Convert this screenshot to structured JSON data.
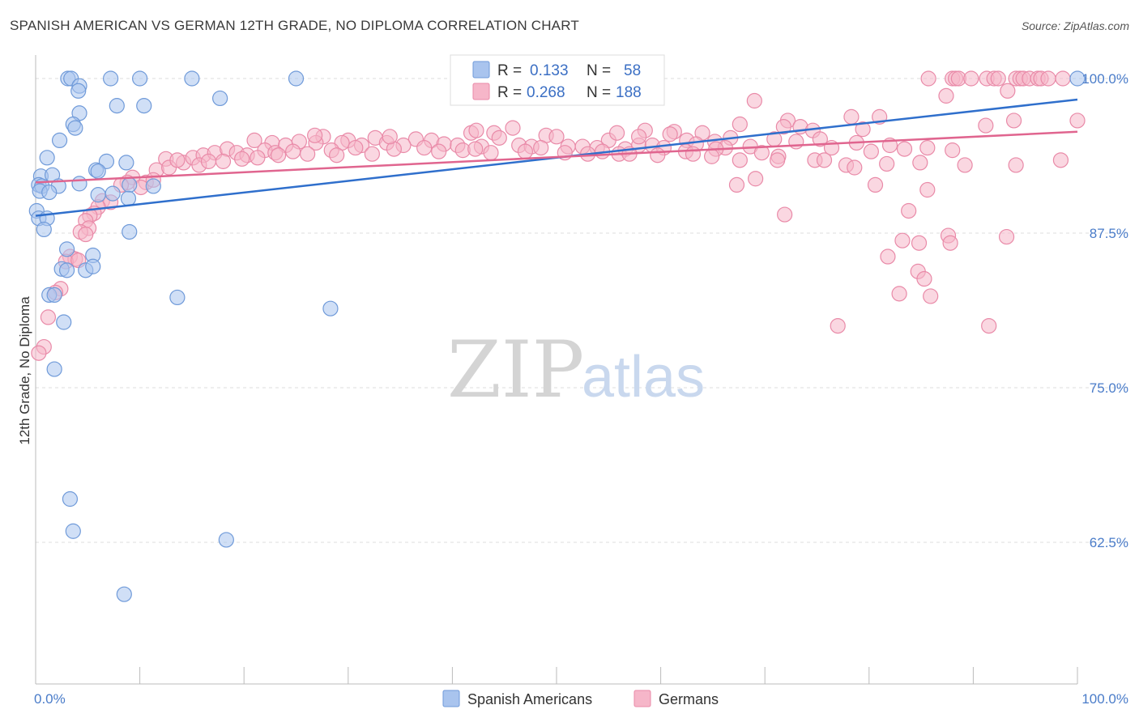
{
  "title": "SPANISH AMERICAN VS GERMAN 12TH GRADE, NO DIPLOMA CORRELATION CHART",
  "source": "Source: ZipAtlas.com",
  "watermark": {
    "zip": "ZIP",
    "atlas": "atlas"
  },
  "colors": {
    "blue_fill": "#a9c4ee",
    "blue_stroke": "#6f9ad9",
    "blue_line": "#2f6fcc",
    "pink_fill": "#f6b6c9",
    "pink_stroke": "#e98aa8",
    "pink_line": "#e0658f",
    "grid": "#dddddd",
    "tick_text": "#4a7cc9"
  },
  "legend": {
    "row1": {
      "r_label": "R =",
      "r_value": "0.133",
      "n_label": "N =",
      "n_value": "58"
    },
    "row2": {
      "r_label": "R =",
      "r_value": "0.268",
      "n_label": "N =",
      "n_value": "188"
    }
  },
  "bottom_legend": {
    "item1": "Spanish Americans",
    "item2": "Germans"
  },
  "chart_data": {
    "type": "scatter",
    "title": "SPANISH AMERICAN VS GERMAN 12TH GRADE, NO DIPLOMA CORRELATION CHART",
    "xlabel": "",
    "ylabel": "12th Grade, No Diploma",
    "xlim": [
      0,
      100
    ],
    "ylim": [
      50,
      101
    ],
    "x_tick_labels": [
      "0.0%",
      "100.0%"
    ],
    "y_ticks": [
      62.5,
      75.0,
      87.5,
      100.0
    ],
    "y_tick_labels": [
      "62.5%",
      "75.0%",
      "87.5%",
      "100.0%"
    ],
    "grid": true,
    "legend_position": "top-center",
    "series": [
      {
        "name": "Spanish Americans",
        "color": "#a9c4ee",
        "trend": {
          "x": [
            0,
            100
          ],
          "y": [
            88.9,
            98.3
          ]
        },
        "points": [
          [
            3.1,
            100
          ],
          [
            3.4,
            100
          ],
          [
            7.2,
            100
          ],
          [
            10,
            100
          ],
          [
            15,
            100
          ],
          [
            25,
            100
          ],
          [
            100,
            100
          ],
          [
            4.2,
            99.4
          ],
          [
            4.1,
            99
          ],
          [
            4.2,
            97.2
          ],
          [
            7.8,
            97.8
          ],
          [
            10.4,
            97.8
          ],
          [
            17.7,
            98.4
          ],
          [
            3.6,
            96.3
          ],
          [
            3.8,
            96
          ],
          [
            2.3,
            95
          ],
          [
            1.1,
            93.6
          ],
          [
            6.8,
            93.3
          ],
          [
            8.7,
            93.2
          ],
          [
            0.5,
            92.1
          ],
          [
            1.6,
            92.2
          ],
          [
            5.8,
            92.6
          ],
          [
            6,
            92.5
          ],
          [
            0.3,
            91.4
          ],
          [
            0.6,
            91.3
          ],
          [
            2.2,
            91.3
          ],
          [
            4.2,
            91.5
          ],
          [
            9,
            91.4
          ],
          [
            11.3,
            91.3
          ],
          [
            6,
            90.6
          ],
          [
            7.4,
            90.7
          ],
          [
            0.4,
            90.9
          ],
          [
            1.3,
            90.8
          ],
          [
            8.9,
            90.3
          ],
          [
            0.1,
            89.3
          ],
          [
            0.3,
            88.7
          ],
          [
            1.1,
            88.7
          ],
          [
            0.8,
            87.8
          ],
          [
            9,
            87.6
          ],
          [
            3,
            86.2
          ],
          [
            5.5,
            85.7
          ],
          [
            2.5,
            84.6
          ],
          [
            3,
            84.5
          ],
          [
            4.8,
            84.5
          ],
          [
            5.5,
            84.8
          ],
          [
            1.3,
            82.5
          ],
          [
            1.8,
            82.5
          ],
          [
            13.6,
            82.3
          ],
          [
            28.3,
            81.4
          ],
          [
            2.7,
            80.3
          ],
          [
            1.8,
            76.5
          ],
          [
            3.3,
            66
          ],
          [
            3.6,
            63.4
          ],
          [
            18.3,
            62.7
          ],
          [
            8.5,
            58.3
          ]
        ]
      },
      {
        "name": "Germans",
        "color": "#f6b6c9",
        "trend": {
          "x": [
            0,
            100
          ],
          "y": [
            91.6,
            95.7
          ]
        },
        "points": [
          [
            85.7,
            100
          ],
          [
            88,
            100
          ],
          [
            88.3,
            100
          ],
          [
            88.6,
            100
          ],
          [
            91.3,
            100
          ],
          [
            92,
            100
          ],
          [
            92.4,
            100
          ],
          [
            94.1,
            100
          ],
          [
            94.5,
            100
          ],
          [
            94.8,
            100
          ],
          [
            95.4,
            100
          ],
          [
            96.2,
            100
          ],
          [
            96.5,
            100
          ],
          [
            97.2,
            100
          ],
          [
            98.6,
            100
          ],
          [
            89.8,
            100
          ],
          [
            93.3,
            99
          ],
          [
            87.4,
            98.6
          ],
          [
            69,
            98.2
          ],
          [
            93.9,
            96.6
          ],
          [
            100,
            96.6
          ],
          [
            81,
            96.9
          ],
          [
            78.3,
            96.9
          ],
          [
            91.2,
            96.2
          ],
          [
            72.2,
            96.6
          ],
          [
            67.6,
            96.3
          ],
          [
            71.8,
            96.1
          ],
          [
            73.4,
            96.1
          ],
          [
            74.6,
            95.8
          ],
          [
            79.4,
            95.9
          ],
          [
            61.3,
            95.7
          ],
          [
            64,
            95.6
          ],
          [
            58.5,
            95.8
          ],
          [
            45.8,
            96
          ],
          [
            41.8,
            95.6
          ],
          [
            44,
            95.6
          ],
          [
            49,
            95.4
          ],
          [
            44.5,
            95.2
          ],
          [
            36.5,
            95.1
          ],
          [
            38,
            95
          ],
          [
            27.6,
            95.3
          ],
          [
            30,
            95
          ],
          [
            32.6,
            95.2
          ],
          [
            50,
            95.3
          ],
          [
            55,
            95
          ],
          [
            62.5,
            95
          ],
          [
            66.7,
            95.2
          ],
          [
            70.9,
            95.1
          ],
          [
            75.3,
            95.1
          ],
          [
            78.8,
            94.8
          ],
          [
            82,
            94.6
          ],
          [
            85.6,
            94.4
          ],
          [
            88,
            94.2
          ],
          [
            21,
            95
          ],
          [
            22.7,
            94.8
          ],
          [
            24,
            94.6
          ],
          [
            25.3,
            94.9
          ],
          [
            26.9,
            94.8
          ],
          [
            29.4,
            94.8
          ],
          [
            31.3,
            94.6
          ],
          [
            33.7,
            94.8
          ],
          [
            35.3,
            94.6
          ],
          [
            37.3,
            94.4
          ],
          [
            39.2,
            94.7
          ],
          [
            40.5,
            94.6
          ],
          [
            42.8,
            94.5
          ],
          [
            46.4,
            94.6
          ],
          [
            47.6,
            94.5
          ],
          [
            48.5,
            94.4
          ],
          [
            51.1,
            94.5
          ],
          [
            52.5,
            94.5
          ],
          [
            53.9,
            94.4
          ],
          [
            56.6,
            94.3
          ],
          [
            57.9,
            94.6
          ],
          [
            59.2,
            94.6
          ],
          [
            60.3,
            94.4
          ],
          [
            63.4,
            94.7
          ],
          [
            65.2,
            94.9
          ],
          [
            66.2,
            94.4
          ],
          [
            68.6,
            94.5
          ],
          [
            73,
            94.9
          ],
          [
            76.4,
            94.4
          ],
          [
            80.2,
            94.1
          ],
          [
            83.4,
            94.3
          ],
          [
            12.5,
            93.5
          ],
          [
            14.2,
            93.2
          ],
          [
            15.1,
            93.6
          ],
          [
            16.1,
            93.8
          ],
          [
            17.2,
            94
          ],
          [
            18.4,
            94.3
          ],
          [
            19.3,
            94
          ],
          [
            20.3,
            93.8
          ],
          [
            22,
            94.2
          ],
          [
            23,
            94
          ],
          [
            24.7,
            94.1
          ],
          [
            26.1,
            93.9
          ],
          [
            28.4,
            94.2
          ],
          [
            30.7,
            94.4
          ],
          [
            34.4,
            94.3
          ],
          [
            38.7,
            94.1
          ],
          [
            41,
            94.2
          ],
          [
            43.7,
            94
          ],
          [
            47,
            94.1
          ],
          [
            50.8,
            94
          ],
          [
            53,
            93.9
          ],
          [
            54.4,
            94.1
          ],
          [
            56,
            93.9
          ],
          [
            59.7,
            93.8
          ],
          [
            62.4,
            94.1
          ],
          [
            65.3,
            94.3
          ],
          [
            69.7,
            94
          ],
          [
            71.3,
            93.7
          ],
          [
            74.8,
            93.4
          ],
          [
            77.8,
            93
          ],
          [
            81.7,
            93.1
          ],
          [
            84.9,
            93.2
          ],
          [
            89.2,
            93
          ],
          [
            94.1,
            93
          ],
          [
            98.4,
            93.4
          ],
          [
            11.6,
            92.6
          ],
          [
            12.8,
            92.8
          ],
          [
            13.6,
            93.4
          ],
          [
            15.7,
            93
          ],
          [
            16.6,
            93.3
          ],
          [
            18,
            93.3
          ],
          [
            19.8,
            93.5
          ],
          [
            21.3,
            93.6
          ],
          [
            23.3,
            93.8
          ],
          [
            28.9,
            93.8
          ],
          [
            32.3,
            93.9
          ],
          [
            42.2,
            94.3
          ],
          [
            57,
            93.9
          ],
          [
            63.1,
            93.9
          ],
          [
            64.9,
            93.7
          ],
          [
            67.6,
            93.4
          ],
          [
            71.2,
            93.4
          ],
          [
            75.7,
            93.4
          ],
          [
            78.6,
            92.8
          ],
          [
            9.3,
            92
          ],
          [
            10.6,
            91.6
          ],
          [
            11.3,
            91.8
          ],
          [
            8.8,
            91.6
          ],
          [
            8.2,
            91.4
          ],
          [
            10.1,
            91.2
          ],
          [
            69.1,
            91.9
          ],
          [
            67.3,
            91.4
          ],
          [
            80.6,
            91.4
          ],
          [
            85.6,
            91
          ],
          [
            6.4,
            90.1
          ],
          [
            7.2,
            90
          ],
          [
            6,
            89.6
          ],
          [
            5.6,
            89.1
          ],
          [
            5.2,
            88.9
          ],
          [
            71.9,
            89
          ],
          [
            83.8,
            89.3
          ],
          [
            4.8,
            88.5
          ],
          [
            5.1,
            87.9
          ],
          [
            4.3,
            87.6
          ],
          [
            4.8,
            87.4
          ],
          [
            83.2,
            86.9
          ],
          [
            84.8,
            86.7
          ],
          [
            87.6,
            87.3
          ],
          [
            93.2,
            87.2
          ],
          [
            87.8,
            86.7
          ],
          [
            81.8,
            85.6
          ],
          [
            3.3,
            85.6
          ],
          [
            3.8,
            85.4
          ],
          [
            2.9,
            85.2
          ],
          [
            4.1,
            85.3
          ],
          [
            84.7,
            84.4
          ],
          [
            85.3,
            83.8
          ],
          [
            2.4,
            83
          ],
          [
            1.9,
            82.7
          ],
          [
            82.9,
            82.6
          ],
          [
            85.9,
            82.4
          ],
          [
            1.2,
            80.7
          ],
          [
            77,
            80
          ],
          [
            91.5,
            80
          ],
          [
            0.8,
            78.3
          ],
          [
            0.3,
            77.8
          ],
          [
            42.3,
            95.8
          ],
          [
            57.9,
            95.3
          ],
          [
            26.8,
            95.4
          ],
          [
            34,
            95.3
          ],
          [
            55.8,
            95.6
          ],
          [
            60.9,
            95.5
          ]
        ]
      }
    ]
  }
}
